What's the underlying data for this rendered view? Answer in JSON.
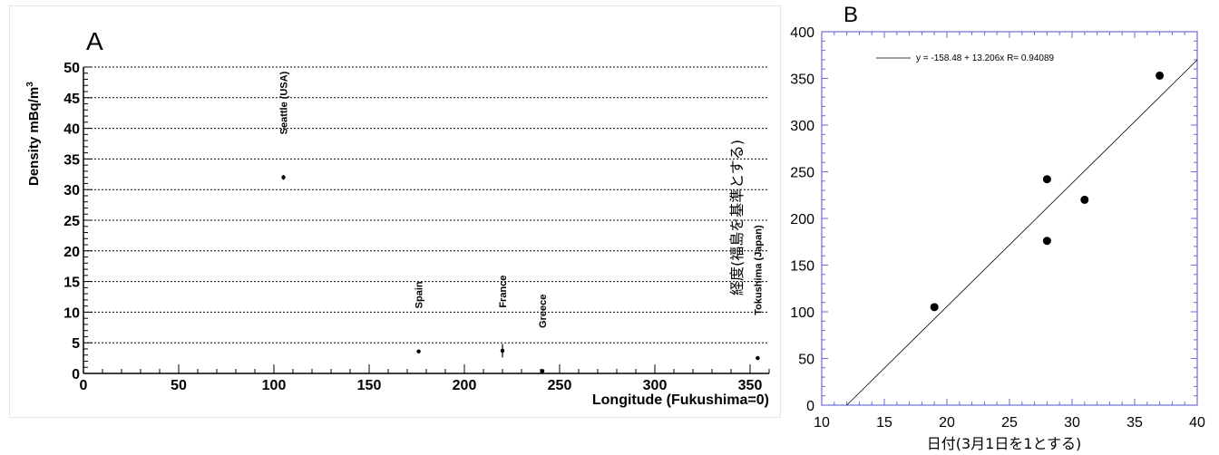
{
  "chart_data": [
    {
      "panel_label": "A",
      "type": "scatter",
      "xlabel": "Longitude (Fukushima=0)",
      "ylabel": "Density mBq/m",
      "ylabel_superscript": "3",
      "xlim": [
        0,
        360
      ],
      "ylim": [
        0,
        50
      ],
      "x_ticks": [
        0,
        50,
        100,
        150,
        200,
        250,
        300,
        350
      ],
      "y_ticks": [
        0,
        5,
        10,
        15,
        20,
        25,
        30,
        35,
        40,
        45,
        50
      ],
      "grid": "horizontal dotted",
      "points": [
        {
          "label": "Seattle (USA)",
          "x": 105,
          "y": 32,
          "err": 0.4
        },
        {
          "label": "Spain",
          "x": 176,
          "y": 3.6,
          "err": 0
        },
        {
          "label": "France",
          "x": 220,
          "y": 3.7,
          "err": 1.1
        },
        {
          "label": "Greece",
          "x": 241,
          "y": 0.4,
          "err": 0
        },
        {
          "label": "Tokushima (Japan)",
          "x": 354,
          "y": 2.5,
          "err": 0
        }
      ]
    },
    {
      "panel_label": "B",
      "type": "scatter",
      "xlabel": "日付(3月1日を1とする)",
      "ylabel": "経度(福島を基準とする)",
      "xlim": [
        10,
        40
      ],
      "ylim": [
        0,
        400
      ],
      "x_ticks": [
        10,
        15,
        20,
        25,
        30,
        35,
        40
      ],
      "y_ticks": [
        0,
        50,
        100,
        150,
        200,
        250,
        300,
        350,
        400
      ],
      "grid": "off",
      "points": [
        {
          "x": 19,
          "y": 105
        },
        {
          "x": 28,
          "y": 176
        },
        {
          "x": 28,
          "y": 242
        },
        {
          "x": 31,
          "y": 220
        },
        {
          "x": 37,
          "y": 353
        }
      ],
      "fit": {
        "intercept": -158.48,
        "slope": 13.206,
        "legend_text": "y = -158.48 + 13.206x   R= 0.94089"
      }
    }
  ]
}
